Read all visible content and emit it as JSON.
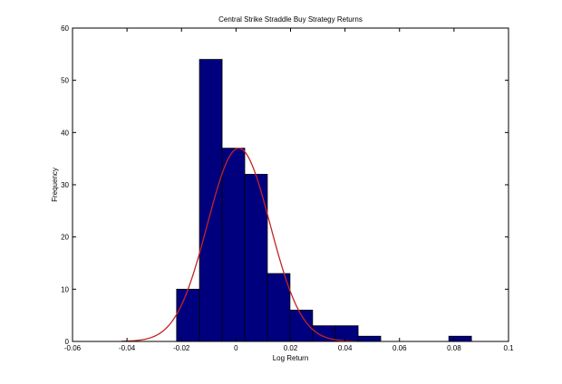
{
  "chart_data": {
    "type": "bar",
    "title": "Central Strike Straddle Buy Strategy Returns",
    "xlabel": "Log Return",
    "ylabel": "Frequency",
    "xlim": [
      -0.06,
      0.1
    ],
    "ylim": [
      0,
      60
    ],
    "grid": false,
    "x_ticks": [
      "-0.06",
      "-0.04",
      "-0.02",
      "0",
      "0.02",
      "0.04",
      "0.06",
      "0.08",
      "0.1"
    ],
    "y_ticks": [
      "0",
      "10",
      "20",
      "30",
      "40",
      "50",
      "60"
    ],
    "bins": [
      {
        "x0": -0.0218,
        "x1": -0.0134,
        "count": 10
      },
      {
        "x0": -0.0134,
        "x1": -0.0051,
        "count": 54
      },
      {
        "x0": -0.0051,
        "x1": 0.0032,
        "count": 37
      },
      {
        "x0": 0.0032,
        "x1": 0.0115,
        "count": 32
      },
      {
        "x0": 0.0115,
        "x1": 0.0198,
        "count": 13
      },
      {
        "x0": 0.0198,
        "x1": 0.0281,
        "count": 6
      },
      {
        "x0": 0.0281,
        "x1": 0.0365,
        "count": 3
      },
      {
        "x0": 0.0365,
        "x1": 0.0448,
        "count": 3
      },
      {
        "x0": 0.0448,
        "x1": 0.0531,
        "count": 1
      },
      {
        "x0": 0.0531,
        "x1": 0.0614,
        "count": 0
      },
      {
        "x0": 0.0614,
        "x1": 0.0697,
        "count": 0
      },
      {
        "x0": 0.0697,
        "x1": 0.0781,
        "count": 0
      },
      {
        "x0": 0.0781,
        "x1": 0.0864,
        "count": 1
      }
    ],
    "fit_curve": {
      "type": "normal",
      "mean": 0.001,
      "std": 0.0115,
      "peak": 37,
      "x_range": [
        -0.042,
        0.044
      ]
    },
    "colors": {
      "bar_fill": "#00007f",
      "bar_edge": "#000000",
      "curve": "#c42424"
    }
  }
}
